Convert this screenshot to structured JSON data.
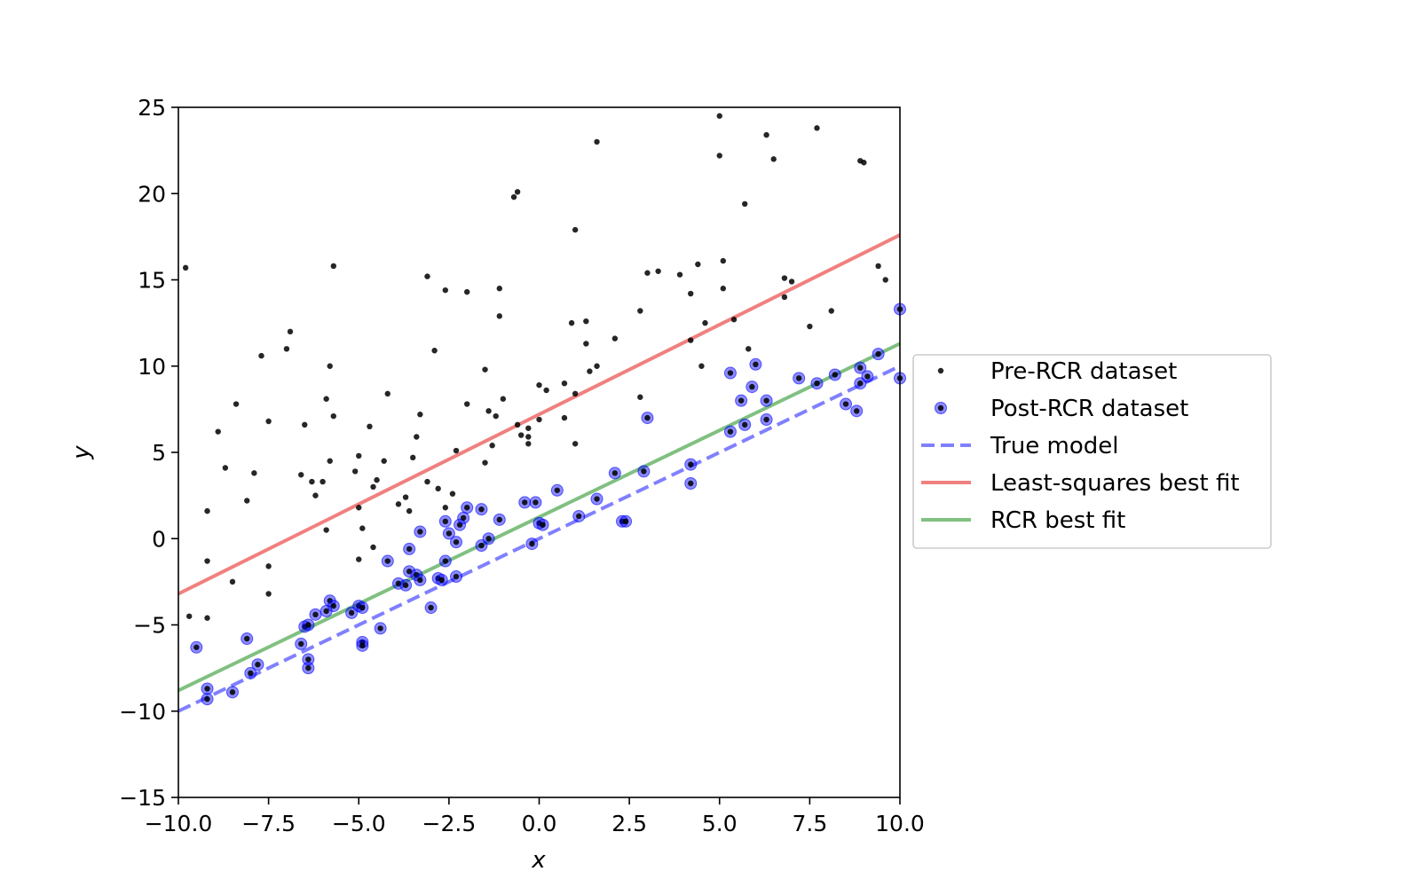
{
  "chart_data": {
    "type": "scatter",
    "xlabel": "x",
    "ylabel": "y",
    "xlim": [
      -10,
      10
    ],
    "ylim": [
      -15,
      25
    ],
    "x_ticks": [
      -10,
      -7.5,
      -5,
      -2.5,
      0,
      2.5,
      5,
      7.5,
      10
    ],
    "x_tick_labels": [
      "−10.0",
      "−7.5",
      "−5.0",
      "−2.5",
      "0.0",
      "2.5",
      "5.0",
      "7.5",
      "10.0"
    ],
    "y_ticks": [
      -15,
      -10,
      -5,
      0,
      5,
      10,
      15,
      20,
      25
    ],
    "y_tick_labels": [
      "−15",
      "−10",
      "−5",
      "0",
      "5",
      "10",
      "15",
      "20",
      "25"
    ],
    "grid": false,
    "legend_position": "right, outside plot",
    "series": [
      {
        "name": "Pre-RCR dataset",
        "kind": "scatter",
        "color": "#000000",
        "points": [
          [
            -9.8,
            15.7
          ],
          [
            -9.7,
            -4.5
          ],
          [
            -9.2,
            1.6
          ],
          [
            -9.2,
            -1.3
          ],
          [
            -9.2,
            -4.6
          ],
          [
            -8.9,
            6.2
          ],
          [
            -8.7,
            4.1
          ],
          [
            -8.4,
            7.8
          ],
          [
            -8.5,
            -2.5
          ],
          [
            -8.1,
            2.2
          ],
          [
            -7.9,
            3.8
          ],
          [
            -7.7,
            10.6
          ],
          [
            -7.5,
            6.8
          ],
          [
            -7.5,
            -1.6
          ],
          [
            -7.5,
            -3.2
          ],
          [
            -7.0,
            11.0
          ],
          [
            -6.9,
            12.0
          ],
          [
            -6.6,
            3.7
          ],
          [
            -6.5,
            6.6
          ],
          [
            -6.3,
            3.3
          ],
          [
            -6.2,
            2.5
          ],
          [
            -6.0,
            3.3
          ],
          [
            -5.9,
            8.1
          ],
          [
            -5.9,
            0.5
          ],
          [
            -5.8,
            4.5
          ],
          [
            -5.8,
            10.0
          ],
          [
            -5.7,
            7.1
          ],
          [
            -5.7,
            15.8
          ],
          [
            -5.1,
            3.9
          ],
          [
            -5.0,
            4.8
          ],
          [
            -5.0,
            1.8
          ],
          [
            -5.0,
            -1.2
          ],
          [
            -4.9,
            0.6
          ],
          [
            -4.7,
            6.5
          ],
          [
            -4.6,
            3.0
          ],
          [
            -4.5,
            3.4
          ],
          [
            -4.6,
            -0.5
          ],
          [
            -4.3,
            4.5
          ],
          [
            -4.2,
            8.4
          ],
          [
            -3.9,
            2.0
          ],
          [
            -3.7,
            2.4
          ],
          [
            -3.6,
            1.6
          ],
          [
            -3.5,
            4.7
          ],
          [
            -3.4,
            5.9
          ],
          [
            -3.3,
            7.2
          ],
          [
            -3.1,
            15.2
          ],
          [
            -3.1,
            3.3
          ],
          [
            -2.9,
            10.9
          ],
          [
            -2.8,
            2.9
          ],
          [
            -2.6,
            14.4
          ],
          [
            -2.6,
            1.8
          ],
          [
            -2.4,
            2.6
          ],
          [
            -2.3,
            5.1
          ],
          [
            -2.0,
            7.8
          ],
          [
            -2.0,
            14.3
          ],
          [
            -1.5,
            4.4
          ],
          [
            -1.5,
            9.8
          ],
          [
            -1.4,
            7.4
          ],
          [
            -1.3,
            5.4
          ],
          [
            -1.1,
            14.5
          ],
          [
            -1.1,
            12.9
          ],
          [
            -1.0,
            8.1
          ],
          [
            -1.2,
            7.1
          ],
          [
            -0.7,
            19.8
          ],
          [
            -0.6,
            20.1
          ],
          [
            -0.6,
            6.6
          ],
          [
            -0.5,
            6.0
          ],
          [
            -0.3,
            6.4
          ],
          [
            -0.3,
            5.9
          ],
          [
            -0.3,
            5.5
          ],
          [
            0.0,
            8.9
          ],
          [
            0.0,
            6.9
          ],
          [
            0.2,
            8.6
          ],
          [
            0.7,
            9.0
          ],
          [
            0.7,
            7.0
          ],
          [
            0.9,
            12.5
          ],
          [
            1.0,
            17.9
          ],
          [
            1.0,
            8.4
          ],
          [
            1.0,
            5.5
          ],
          [
            1.3,
            12.6
          ],
          [
            1.3,
            11.3
          ],
          [
            1.4,
            9.7
          ],
          [
            1.6,
            10.0
          ],
          [
            1.6,
            23.0
          ],
          [
            2.1,
            11.6
          ],
          [
            2.8,
            13.2
          ],
          [
            2.8,
            8.2
          ],
          [
            3.0,
            15.4
          ],
          [
            3.3,
            15.5
          ],
          [
            3.9,
            15.3
          ],
          [
            4.2,
            14.2
          ],
          [
            4.2,
            11.5
          ],
          [
            4.4,
            15.9
          ],
          [
            4.5,
            10.0
          ],
          [
            4.6,
            12.5
          ],
          [
            5.0,
            24.5
          ],
          [
            5.0,
            22.2
          ],
          [
            5.1,
            16.1
          ],
          [
            5.1,
            14.5
          ],
          [
            5.4,
            12.7
          ],
          [
            5.7,
            19.4
          ],
          [
            5.8,
            11.0
          ],
          [
            6.3,
            23.4
          ],
          [
            6.5,
            22.0
          ],
          [
            6.8,
            15.1
          ],
          [
            6.8,
            14.0
          ],
          [
            7.0,
            14.9
          ],
          [
            7.5,
            12.3
          ],
          [
            7.7,
            23.8
          ],
          [
            8.1,
            13.2
          ],
          [
            8.9,
            21.9
          ],
          [
            9.0,
            21.8
          ],
          [
            9.4,
            15.8
          ],
          [
            9.6,
            15.0
          ]
        ]
      },
      {
        "name": "Post-RCR dataset",
        "kind": "scatter",
        "color": "#0000ff",
        "points": [
          [
            -9.5,
            -6.3
          ],
          [
            -9.2,
            -9.3
          ],
          [
            -9.2,
            -8.7
          ],
          [
            -8.5,
            -8.9
          ],
          [
            -8.1,
            -5.8
          ],
          [
            -8.0,
            -7.8
          ],
          [
            -7.8,
            -7.3
          ],
          [
            -6.6,
            -6.1
          ],
          [
            -6.5,
            -5.1
          ],
          [
            -6.4,
            -5.0
          ],
          [
            -6.4,
            -7.0
          ],
          [
            -6.4,
            -7.5
          ],
          [
            -6.2,
            -4.4
          ],
          [
            -5.9,
            -4.2
          ],
          [
            -5.8,
            -3.6
          ],
          [
            -5.7,
            -3.9
          ],
          [
            -5.2,
            -4.3
          ],
          [
            -5.0,
            -3.9
          ],
          [
            -4.9,
            -4.0
          ],
          [
            -4.9,
            -6.0
          ],
          [
            -4.9,
            -6.2
          ],
          [
            -4.4,
            -5.2
          ],
          [
            -4.2,
            -1.3
          ],
          [
            -3.9,
            -2.6
          ],
          [
            -3.7,
            -2.7
          ],
          [
            -3.6,
            -1.9
          ],
          [
            -3.6,
            -0.6
          ],
          [
            -3.4,
            -2.1
          ],
          [
            -3.3,
            -2.4
          ],
          [
            -3.3,
            0.4
          ],
          [
            -3.0,
            -4.0
          ],
          [
            -2.8,
            -2.3
          ],
          [
            -2.7,
            -2.4
          ],
          [
            -2.6,
            -1.3
          ],
          [
            -2.6,
            1.0
          ],
          [
            -2.5,
            0.3
          ],
          [
            -2.3,
            -0.2
          ],
          [
            -2.3,
            -2.2
          ],
          [
            -2.2,
            0.8
          ],
          [
            -2.1,
            1.2
          ],
          [
            -2.0,
            1.8
          ],
          [
            -1.6,
            1.7
          ],
          [
            -1.6,
            -0.4
          ],
          [
            -1.4,
            0.0
          ],
          [
            -1.1,
            1.1
          ],
          [
            -0.4,
            2.1
          ],
          [
            -0.2,
            -0.3
          ],
          [
            -0.1,
            2.1
          ],
          [
            0.0,
            0.9
          ],
          [
            0.1,
            0.8
          ],
          [
            0.5,
            2.8
          ],
          [
            1.1,
            1.3
          ],
          [
            1.6,
            2.3
          ],
          [
            2.1,
            3.8
          ],
          [
            2.3,
            1.0
          ],
          [
            2.4,
            1.0
          ],
          [
            2.9,
            3.9
          ],
          [
            3.0,
            7.0
          ],
          [
            4.2,
            4.3
          ],
          [
            4.2,
            3.2
          ],
          [
            5.3,
            6.2
          ],
          [
            5.3,
            9.6
          ],
          [
            5.6,
            8.0
          ],
          [
            5.7,
            6.6
          ],
          [
            5.9,
            8.8
          ],
          [
            6.0,
            10.1
          ],
          [
            6.3,
            8.0
          ],
          [
            6.3,
            6.9
          ],
          [
            7.2,
            9.3
          ],
          [
            7.7,
            9.0
          ],
          [
            8.2,
            9.5
          ],
          [
            8.5,
            7.8
          ],
          [
            8.8,
            7.4
          ],
          [
            8.9,
            9.0
          ],
          [
            8.9,
            9.9
          ],
          [
            9.1,
            9.4
          ],
          [
            9.4,
            10.7
          ],
          [
            10.0,
            9.3
          ],
          [
            10.0,
            13.3
          ]
        ]
      },
      {
        "name": "True model",
        "kind": "line",
        "style": "dashed",
        "color": "#8080ff",
        "x": [
          -10,
          10
        ],
        "y": [
          -10,
          10
        ]
      },
      {
        "name": "Least-squares best fit",
        "kind": "line",
        "style": "solid",
        "color": "#f08080",
        "x": [
          -10,
          10
        ],
        "y": [
          -3.2,
          17.6
        ]
      },
      {
        "name": "RCR best fit",
        "kind": "line",
        "style": "solid",
        "color": "#80c080",
        "x": [
          -10,
          10
        ],
        "y": [
          -8.8,
          11.3
        ]
      }
    ]
  }
}
